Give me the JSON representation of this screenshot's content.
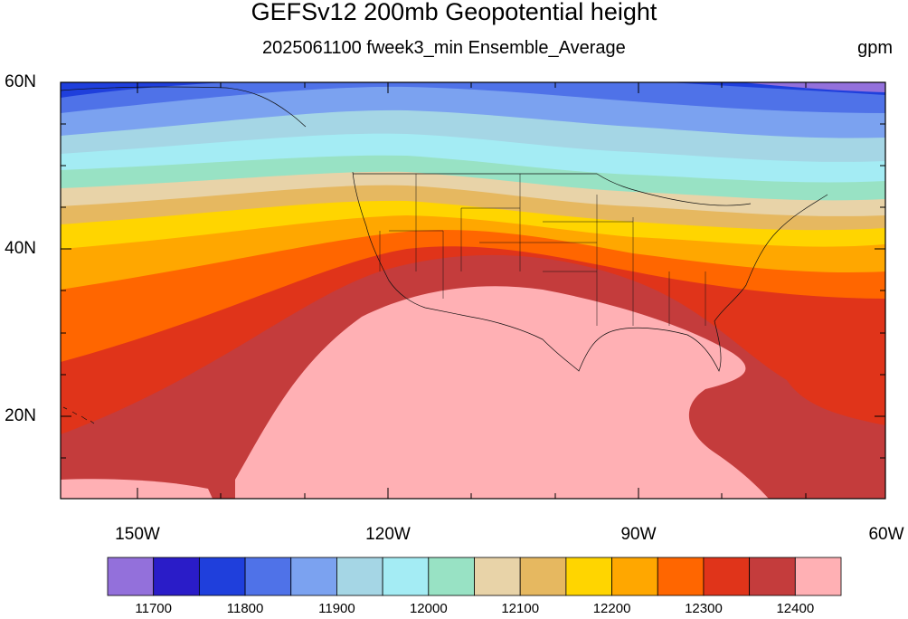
{
  "header": {
    "title": "GEFSv12 200mb Geopotential height",
    "subtitle": "2025061100 fweek3_min Ensemble_Average",
    "units": "gpm"
  },
  "axes": {
    "lat_labels": [
      "60N",
      "40N",
      "20N"
    ],
    "lon_labels": [
      "150W",
      "120W",
      "90W",
      "60W"
    ]
  },
  "colorbar": {
    "colors": [
      "#9370db",
      "#2a1cc8",
      "#1f3fdc",
      "#4f72e8",
      "#7ba2f0",
      "#a5d6e5",
      "#a4ecf4",
      "#98e2c4",
      "#e8d3a8",
      "#e6b860",
      "#ffd500",
      "#ffa700",
      "#ff6600",
      "#e0341a",
      "#c43c3c",
      "#ffb0b4"
    ],
    "labels": [
      "11700",
      "11800",
      "11900",
      "12000",
      "12100",
      "12200",
      "12300",
      "12400"
    ]
  }
}
